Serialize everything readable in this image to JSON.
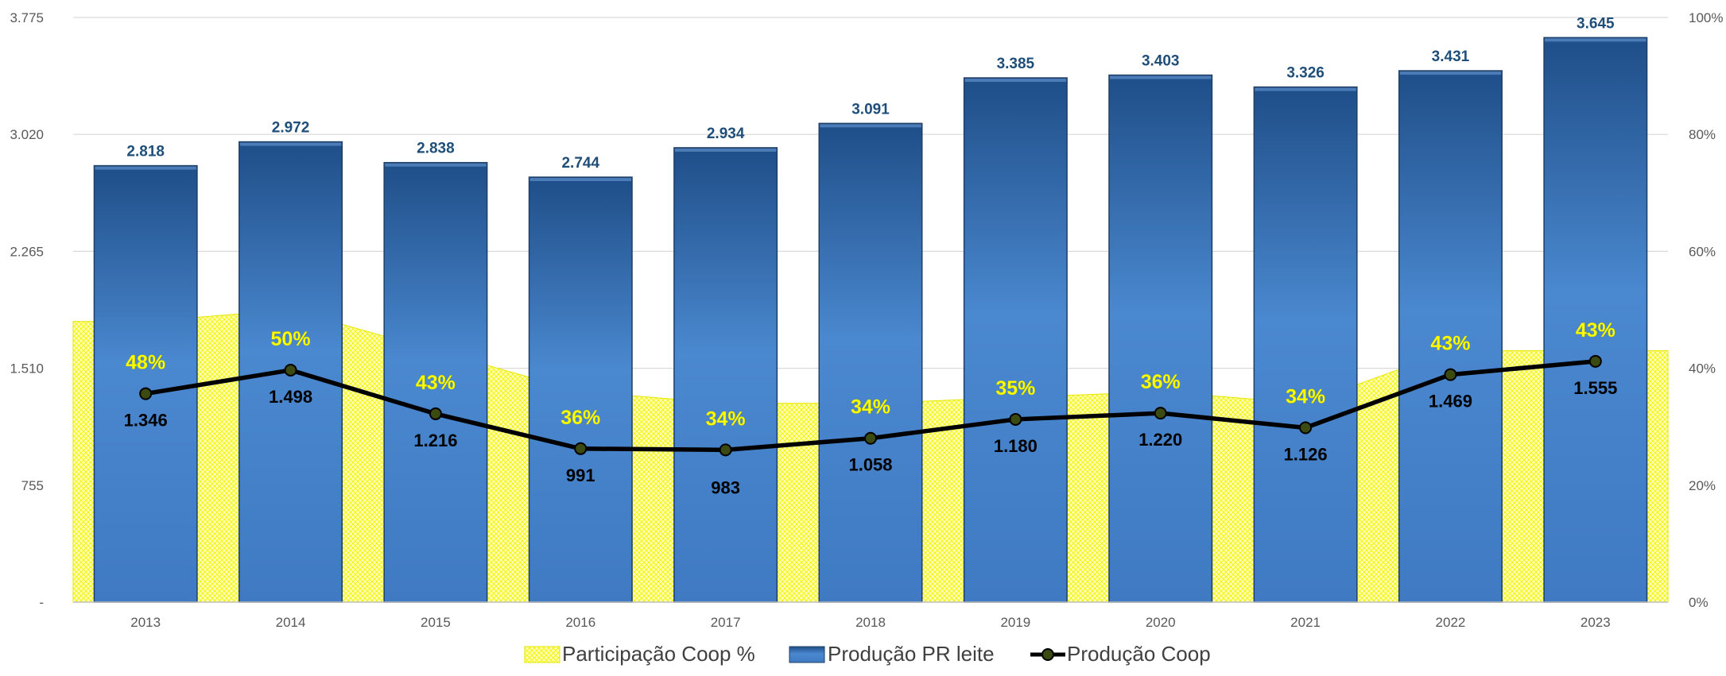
{
  "chart_data": {
    "type": "bar",
    "categories": [
      "2013",
      "2014",
      "2015",
      "2016",
      "2017",
      "2018",
      "2019",
      "2020",
      "2021",
      "2022",
      "2023"
    ],
    "series": [
      {
        "name": "Participação Coop %",
        "kind": "area",
        "axis": "right",
        "values": [
          48,
          50,
          43,
          36,
          34,
          34,
          35,
          36,
          34,
          43,
          43
        ],
        "labels": [
          "48%",
          "50%",
          "43%",
          "36%",
          "34%",
          "34%",
          "35%",
          "36%",
          "34%",
          "43%",
          "43%"
        ],
        "color": "#ffff66"
      },
      {
        "name": "Produção PR leite",
        "kind": "bar",
        "axis": "left",
        "values": [
          2818,
          2972,
          2838,
          2744,
          2934,
          3091,
          3385,
          3403,
          3326,
          3431,
          3645
        ],
        "labels": [
          "2.818",
          "2.972",
          "2.838",
          "2.744",
          "2.934",
          "3.091",
          "3.385",
          "3.403",
          "3.326",
          "3.431",
          "3.645"
        ],
        "color": "#2e75b6"
      },
      {
        "name": "Produção Coop",
        "kind": "line",
        "axis": "left",
        "values": [
          1346,
          1498,
          1216,
          991,
          983,
          1058,
          1180,
          1220,
          1126,
          1469,
          1555
        ],
        "labels": [
          "1.346",
          "1.498",
          "1.216",
          "991",
          "983",
          "1.058",
          "1.180",
          "1.220",
          "1.126",
          "1.469",
          "1.555"
        ],
        "color": "#000000"
      }
    ],
    "y_left": {
      "ylim": [
        0,
        3775
      ],
      "ticks": [
        0,
        755,
        1510,
        2265,
        3020,
        3775
      ],
      "tick_labels": [
        "-",
        "755",
        "1.510",
        "2.265",
        "3.020",
        "3.775"
      ]
    },
    "y_right": {
      "ylim": [
        0,
        100
      ],
      "ticks": [
        0,
        20,
        40,
        60,
        80,
        100
      ],
      "tick_labels": [
        "0%",
        "20%",
        "40%",
        "60%",
        "80%",
        "100%"
      ]
    },
    "grid": true,
    "legend_position": "bottom"
  }
}
